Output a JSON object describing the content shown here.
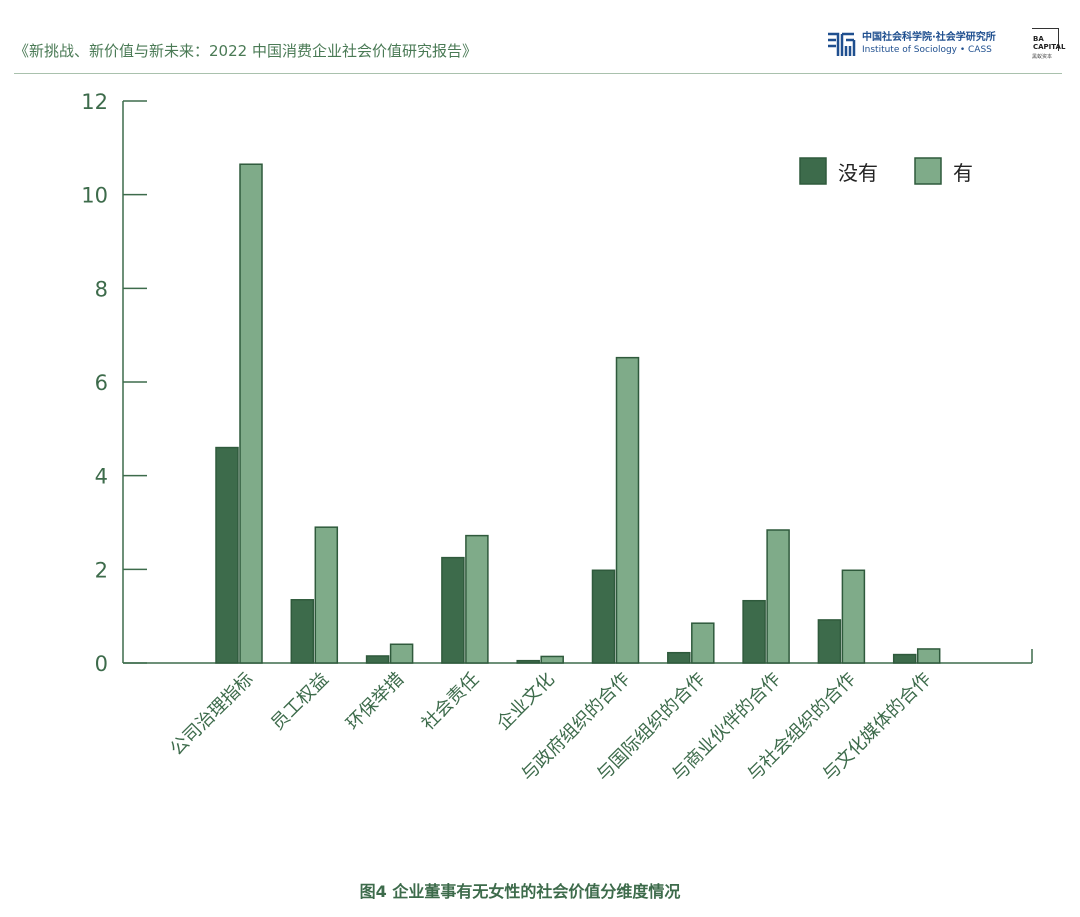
{
  "header": {
    "title": "《新挑战、新价值与新未来：2022 中国消费企业社会价值研究报告》",
    "institute_zh": "中国社会科学院·社会学研究所",
    "institute_en": "Institute of Sociology • CASS",
    "capital_line1": "BA",
    "capital_line2": "CAPITAL",
    "capital_sub": "黑蚁资本"
  },
  "caption": "图4 企业董事有无女性的社会价值分维度情况",
  "chart_data": {
    "type": "bar",
    "categories": [
      "公司治理指标",
      "员工权益",
      "环保举措",
      "社会责任",
      "企业文化",
      "与政府组织的合作",
      "与国际组织的合作",
      "与商业伙伴的合作",
      "与社会组织的合作",
      "与文化媒体的合作"
    ],
    "series": [
      {
        "name": "没有",
        "color": "#3d6b4b",
        "values": [
          4.6,
          1.35,
          0.15,
          2.25,
          0.05,
          1.98,
          0.22,
          1.33,
          0.92,
          0.18
        ]
      },
      {
        "name": "有",
        "color": "#7fab89",
        "values": [
          10.65,
          2.9,
          0.4,
          2.72,
          0.14,
          6.52,
          0.85,
          2.84,
          1.98,
          0.3
        ]
      }
    ],
    "yticks": [
      0,
      2,
      4,
      6,
      8,
      10,
      12
    ],
    "ylim": [
      0,
      12
    ],
    "legend": "top-right",
    "grid": false,
    "axis_color": "#3d6b4b"
  }
}
